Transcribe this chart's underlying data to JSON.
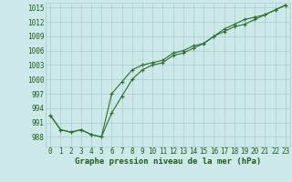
{
  "title": "Graphe pression niveau de la mer (hPa)",
  "x_hours": [
    0,
    1,
    2,
    3,
    4,
    5,
    6,
    7,
    8,
    9,
    10,
    11,
    12,
    13,
    14,
    15,
    16,
    17,
    18,
    19,
    20,
    21,
    22,
    23
  ],
  "line1": [
    992.5,
    989.5,
    989.0,
    989.5,
    988.5,
    988.0,
    993.0,
    996.5,
    1000.0,
    1002.0,
    1003.0,
    1003.5,
    1005.0,
    1005.5,
    1006.5,
    1007.5,
    1009.0,
    1010.0,
    1011.0,
    1011.5,
    1012.5,
    1013.5,
    1014.5,
    1015.5
  ],
  "line2": [
    992.5,
    989.5,
    989.0,
    989.5,
    988.5,
    988.0,
    997.0,
    999.5,
    1002.0,
    1003.0,
    1003.5,
    1004.0,
    1005.5,
    1006.0,
    1007.0,
    1007.5,
    1009.0,
    1010.5,
    1011.5,
    1012.5,
    1013.0,
    1013.5,
    1014.5,
    1015.5
  ],
  "line_color": "#2d6e2d",
  "bg_color": "#cce8e8",
  "grid_color": "#aacccc",
  "ylim": [
    986,
    1016
  ],
  "yticks": [
    988,
    991,
    994,
    997,
    1000,
    1003,
    1006,
    1009,
    1012,
    1015
  ],
  "title_color": "#1a5c1a",
  "title_fontsize": 6.5,
  "tick_fontsize": 5.5
}
